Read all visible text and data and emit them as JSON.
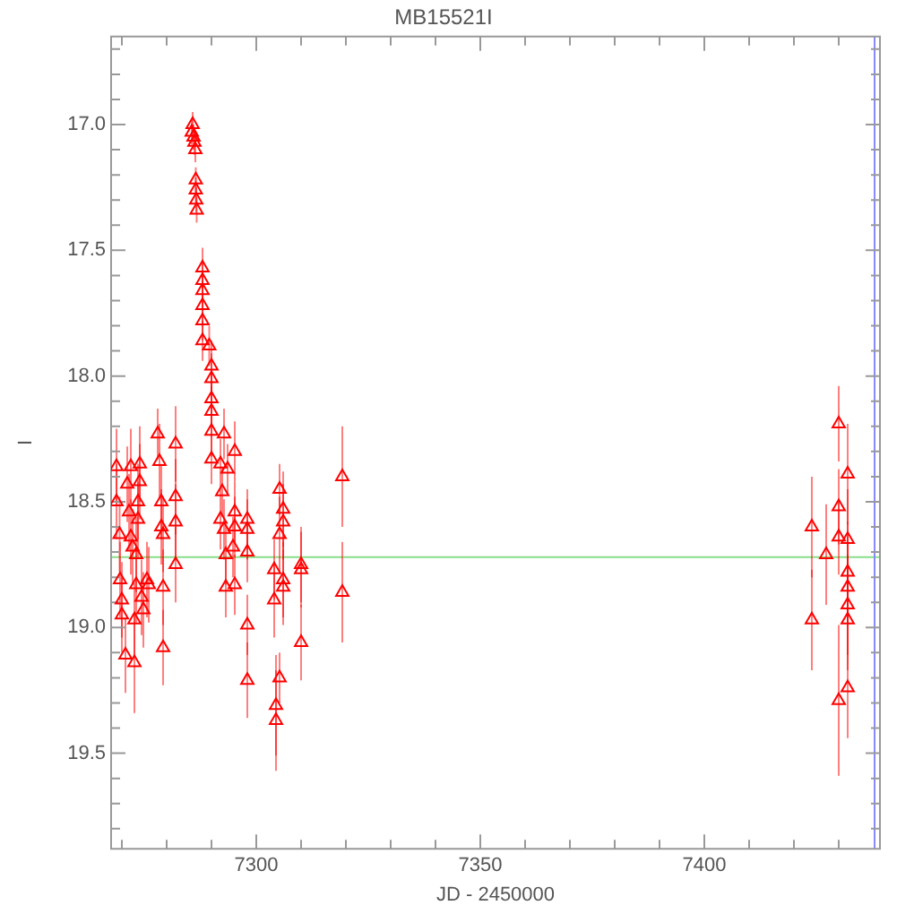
{
  "chart_data": {
    "type": "scatter",
    "title": "MB15521I",
    "xlabel": "JD - 2450000",
    "ylabel": "I",
    "xlim": [
      7267.6,
      7439.2
    ],
    "xticks": [
      {
        "value": 7270,
        "label": null
      },
      {
        "value": 7280,
        "label": null
      },
      {
        "value": 7290,
        "label": null
      },
      7300,
      {
        "value": 7310,
        "label": null
      },
      {
        "value": 7320,
        "label": null
      },
      {
        "value": 7330,
        "label": null
      },
      {
        "value": 7340,
        "label": null
      },
      7350,
      {
        "value": 7360,
        "label": null
      },
      {
        "value": 7370,
        "label": null
      },
      {
        "value": 7380,
        "label": null
      },
      {
        "value": 7390,
        "label": null
      },
      7400,
      {
        "value": 7410,
        "label": null
      },
      {
        "value": 7420,
        "label": null
      },
      {
        "value": 7430,
        "label": null
      }
    ],
    "ylim": [
      19.88,
      16.65
    ],
    "yticks": [
      {
        "value": 16.7,
        "label": null
      },
      {
        "value": 16.8,
        "label": null
      },
      {
        "value": 16.9,
        "label": null
      },
      {
        "value": 17,
        "label": "17.0"
      },
      {
        "value": 17.1,
        "label": null
      },
      {
        "value": 17.2,
        "label": null
      },
      {
        "value": 17.3,
        "label": null
      },
      {
        "value": 17.4,
        "label": null
      },
      17.5,
      {
        "value": 17.6,
        "label": null
      },
      {
        "value": 17.7,
        "label": null
      },
      {
        "value": 17.8,
        "label": null
      },
      {
        "value": 17.9,
        "label": null
      },
      {
        "value": 18,
        "label": "18.0"
      },
      {
        "value": 18.1,
        "label": null
      },
      {
        "value": 18.2,
        "label": null
      },
      {
        "value": 18.3,
        "label": null
      },
      {
        "value": 18.4,
        "label": null
      },
      18.5,
      {
        "value": 18.6,
        "label": null
      },
      {
        "value": 18.7,
        "label": null
      },
      {
        "value": 18.8,
        "label": null
      },
      {
        "value": 18.9,
        "label": null
      },
      {
        "value": 19,
        "label": "19.0"
      },
      {
        "value": 19.1,
        "label": null
      },
      {
        "value": 19.2,
        "label": null
      },
      {
        "value": 19.3,
        "label": null
      },
      {
        "value": 19.4,
        "label": null
      },
      19.5,
      {
        "value": 19.6,
        "label": null
      },
      {
        "value": 19.7,
        "label": null
      },
      {
        "value": 19.8,
        "label": null
      }
    ],
    "grid": false,
    "legend": false,
    "marker": "triangle",
    "ref_lines": [
      {
        "axis": "y",
        "value": 18.72,
        "color": "#88dd88"
      },
      {
        "axis": "x",
        "value": 7438,
        "color": "#8888ff"
      }
    ],
    "series": [
      {
        "color": "#ff0000",
        "x": [
          7268.8,
          7268.8,
          7269.5,
          7269.6,
          7270,
          7270,
          7270.8,
          7271.2,
          7271.6,
          7272,
          7272,
          7272.4,
          7272.8,
          7272.8,
          7273.2,
          7273.2,
          7273.6,
          7273.6,
          7274,
          7274,
          7274.4,
          7274.8,
          7275.6,
          7276,
          7278,
          7278.4,
          7278.8,
          7278.8,
          7279.2,
          7279.2,
          7279.2,
          7282,
          7282,
          7282,
          7282,
          7285.6,
          7285.8,
          7286,
          7286.2,
          7286.4,
          7286.5,
          7286.5,
          7286.6,
          7286.7,
          7288,
          7288,
          7288,
          7288,
          7288,
          7288,
          7289.5,
          7290,
          7290,
          7290,
          7290,
          7290,
          7290,
          7292,
          7292.8,
          7293.6,
          7292.4,
          7292,
          7292.8,
          7293.2,
          7293.2,
          7295.2,
          7295.2,
          7295.2,
          7294.8,
          7295.2,
          7298,
          7298,
          7298,
          7298,
          7298,
          7304,
          7304,
          7304.4,
          7304.4,
          7305.2,
          7305.2,
          7305.2,
          7306,
          7306,
          7306,
          7306,
          7310,
          7310,
          7310,
          7319.2,
          7319.2,
          7424,
          7424,
          7427.2,
          7430,
          7430,
          7430,
          7430,
          7432,
          7432,
          7432,
          7432,
          7432,
          7432,
          7432
        ],
        "values": [
          18.36,
          18.5,
          18.63,
          18.81,
          18.89,
          18.95,
          19.11,
          18.43,
          18.54,
          18.36,
          18.64,
          18.68,
          19.14,
          18.97,
          18.83,
          18.71,
          18.5,
          18.57,
          18.35,
          18.42,
          18.88,
          18.93,
          18.81,
          18.83,
          18.23,
          18.34,
          18.5,
          18.6,
          18.63,
          18.84,
          19.08,
          18.27,
          18.48,
          18.58,
          18.75,
          17.03,
          17.0,
          17.05,
          17.07,
          17.1,
          17.22,
          17.26,
          17.3,
          17.34,
          17.57,
          17.62,
          17.66,
          17.72,
          17.78,
          17.86,
          17.88,
          17.96,
          18.01,
          18.09,
          18.14,
          18.22,
          18.33,
          18.35,
          18.23,
          18.37,
          18.46,
          18.57,
          18.61,
          18.71,
          18.84,
          18.3,
          18.54,
          18.6,
          18.68,
          18.83,
          18.57,
          18.61,
          18.7,
          18.99,
          19.21,
          18.77,
          18.89,
          19.31,
          19.37,
          18.45,
          18.63,
          19.2,
          18.53,
          18.58,
          18.81,
          18.84,
          18.75,
          18.77,
          19.06,
          18.4,
          18.86,
          18.6,
          18.97,
          18.71,
          18.19,
          18.52,
          18.64,
          19.29,
          18.39,
          18.65,
          18.78,
          18.84,
          18.91,
          18.97,
          19.24
        ],
        "errors": [
          0.15,
          0.15,
          0.15,
          0.15,
          0.15,
          0.15,
          0.15,
          0.15,
          0.15,
          0.15,
          0.15,
          0.15,
          0.2,
          0.15,
          0.15,
          0.15,
          0.15,
          0.15,
          0.15,
          0.15,
          0.15,
          0.15,
          0.15,
          0.15,
          0.1,
          0.15,
          0.15,
          0.15,
          0.15,
          0.15,
          0.15,
          0.15,
          0.15,
          0.15,
          0.15,
          0.05,
          0.05,
          0.05,
          0.05,
          0.05,
          0.05,
          0.05,
          0.05,
          0.05,
          0.08,
          0.08,
          0.08,
          0.08,
          0.08,
          0.08,
          0.08,
          0.1,
          0.1,
          0.1,
          0.1,
          0.1,
          0.1,
          0.1,
          0.1,
          0.1,
          0.1,
          0.12,
          0.12,
          0.12,
          0.12,
          0.12,
          0.12,
          0.12,
          0.12,
          0.12,
          0.12,
          0.12,
          0.12,
          0.12,
          0.15,
          0.12,
          0.15,
          0.2,
          0.2,
          0.1,
          0.15,
          0.1,
          0.15,
          0.15,
          0.15,
          0.15,
          0.15,
          0.15,
          0.15,
          0.2,
          0.2,
          0.2,
          0.2,
          0.2,
          0.15,
          0.15,
          0.15,
          0.3,
          0.2,
          0.2,
          0.2,
          0.2,
          0.2,
          0.2,
          0.2
        ]
      }
    ]
  }
}
